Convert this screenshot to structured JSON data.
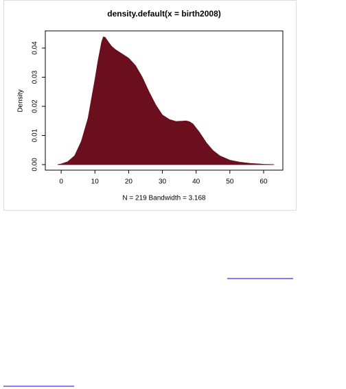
{
  "chart_data": {
    "type": "area",
    "title": "density.default(x = birth2008)",
    "x_label": "N = 219   Bandwidth = 3.168",
    "y_label": "Density",
    "color": "#6b0f1e",
    "x": [
      -1,
      0,
      2,
      4,
      6,
      8,
      10,
      11,
      12,
      12.5,
      13,
      14,
      15,
      16,
      18,
      20,
      22,
      24,
      26,
      28,
      30,
      32,
      34,
      36,
      37,
      38,
      39,
      40,
      41,
      43,
      45,
      47,
      50,
      53,
      56,
      60,
      63
    ],
    "values": [
      0,
      0.0002,
      0.001,
      0.003,
      0.008,
      0.016,
      0.029,
      0.036,
      0.042,
      0.0438,
      0.0437,
      0.042,
      0.0405,
      0.0395,
      0.038,
      0.0365,
      0.034,
      0.03,
      0.025,
      0.0205,
      0.017,
      0.0155,
      0.0148,
      0.0149,
      0.015,
      0.0147,
      0.014,
      0.0125,
      0.011,
      0.0075,
      0.0048,
      0.003,
      0.0015,
      0.0008,
      0.0004,
      0.0001,
      0
    ],
    "xlim": [
      -4.7,
      65.7
    ],
    "ylim": [
      -0.0019,
      0.0459
    ],
    "xticks": [
      0,
      10,
      20,
      30,
      40,
      50,
      60
    ],
    "yticks": [
      {
        "value": 0,
        "label": "0.00"
      },
      {
        "value": 0.01,
        "label": "0.01"
      },
      {
        "value": 0.02,
        "label": "0.02"
      },
      {
        "value": 0.03,
        "label": "0.03"
      },
      {
        "value": 0.04,
        "label": "0.04"
      }
    ]
  }
}
